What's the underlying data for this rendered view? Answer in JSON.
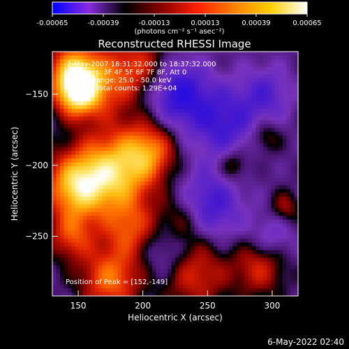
{
  "colorbar": {
    "ticks": [
      "-0.00065",
      "-0.00039",
      "-0.00013",
      "0.00013",
      "0.00039",
      "0.00065"
    ],
    "unit_label": "(photons cm⁻² s⁻¹ asec⁻²)",
    "colors": [
      "#0000ff",
      "#8a2be2",
      "#000000",
      "#8b0000",
      "#ff2000",
      "#ff8000",
      "#ffd000",
      "#ffffff"
    ]
  },
  "chart_data": {
    "type": "heatmap",
    "title": "Reconstructed RHESSI Image",
    "xlabel": "Heliocentric X (arcsec)",
    "ylabel": "Heliocentric Y (arcsec)",
    "xlim": [
      130,
      320
    ],
    "ylim": [
      -292,
      -120
    ],
    "xticks": [
      {
        "v": 150,
        "label": "150"
      },
      {
        "v": 200,
        "label": "200"
      },
      {
        "v": 250,
        "label": "250"
      },
      {
        "v": 300,
        "label": "300"
      }
    ],
    "yticks": [
      {
        "v": -150,
        "label": "−150"
      },
      {
        "v": -200,
        "label": "−200"
      },
      {
        "v": -250,
        "label": "−250"
      }
    ],
    "annotations": [
      "2-May-2007 18:31:32.000 to 18:37:32.000",
      "Detectors: 3F 4F 5F 6F 7F 8F, Att 0",
      "Energy Range: 25.0 - 50.0 keV",
      "Clean     Total counts: 1.29E+04"
    ],
    "peak_label": "Position of Peak = [152,-149]",
    "peak": [
      152,
      -149
    ],
    "sources": [
      {
        "x": 150,
        "y": -148,
        "v": 1.0,
        "s": 12
      },
      {
        "x": 146,
        "y": -132,
        "v": 0.6,
        "s": 14
      },
      {
        "x": 175,
        "y": -140,
        "v": 0.45,
        "s": 18
      },
      {
        "x": 200,
        "y": -128,
        "v": 0.3,
        "s": 14
      },
      {
        "x": 178,
        "y": -205,
        "v": 0.85,
        "s": 20
      },
      {
        "x": 148,
        "y": -215,
        "v": 0.8,
        "s": 16
      },
      {
        "x": 205,
        "y": -190,
        "v": 0.55,
        "s": 14
      },
      {
        "x": 190,
        "y": -245,
        "v": 0.45,
        "s": 14
      },
      {
        "x": 145,
        "y": -250,
        "v": 0.45,
        "s": 12
      },
      {
        "x": 230,
        "y": -240,
        "v": 0.35,
        "s": 14
      },
      {
        "x": 175,
        "y": -280,
        "v": 0.6,
        "s": 16
      },
      {
        "x": 240,
        "y": -275,
        "v": 0.45,
        "s": 18
      },
      {
        "x": 290,
        "y": -272,
        "v": 0.4,
        "s": 14
      },
      {
        "x": 270,
        "y": -200,
        "v": 0.3,
        "s": 8
      },
      {
        "x": 295,
        "y": -180,
        "v": 0.25,
        "s": 8
      },
      {
        "x": 310,
        "y": -230,
        "v": 0.3,
        "s": 8
      },
      {
        "x": 228,
        "y": -150,
        "v": -0.5,
        "s": 16
      },
      {
        "x": 262,
        "y": -170,
        "v": -0.4,
        "s": 18
      },
      {
        "x": 250,
        "y": -230,
        "v": -0.45,
        "s": 18
      },
      {
        "x": 295,
        "y": -150,
        "v": -0.3,
        "s": 14
      },
      {
        "x": 220,
        "y": -260,
        "v": -0.3,
        "s": 14
      },
      {
        "x": 300,
        "y": -250,
        "v": -0.25,
        "s": 12
      }
    ]
  },
  "footer_timestamp": "6-May-2022 02:40"
}
